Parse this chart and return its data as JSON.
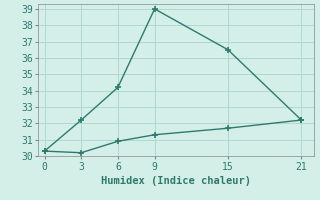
{
  "line1_x": [
    0,
    3,
    6,
    9,
    15,
    21
  ],
  "line1_y": [
    30.3,
    32.2,
    34.2,
    39.0,
    36.5,
    32.2
  ],
  "line2_x": [
    0,
    3,
    6,
    9,
    15,
    21
  ],
  "line2_y": [
    30.3,
    30.2,
    30.9,
    31.3,
    31.7,
    32.2
  ],
  "line_color": "#2e7b6e",
  "bg_color": "#d4eee8",
  "grid_color": "#b0d8d0",
  "xlabel": "Humidex (Indice chaleur)",
  "xlim": [
    -0.5,
    22
  ],
  "ylim": [
    30,
    39.3
  ],
  "xticks": [
    0,
    3,
    6,
    9,
    15,
    21
  ],
  "yticks": [
    30,
    31,
    32,
    33,
    34,
    35,
    36,
    37,
    38,
    39
  ],
  "xlabel_fontsize": 7.5,
  "tick_fontsize": 7,
  "line_width": 1.0,
  "marker": "+"
}
